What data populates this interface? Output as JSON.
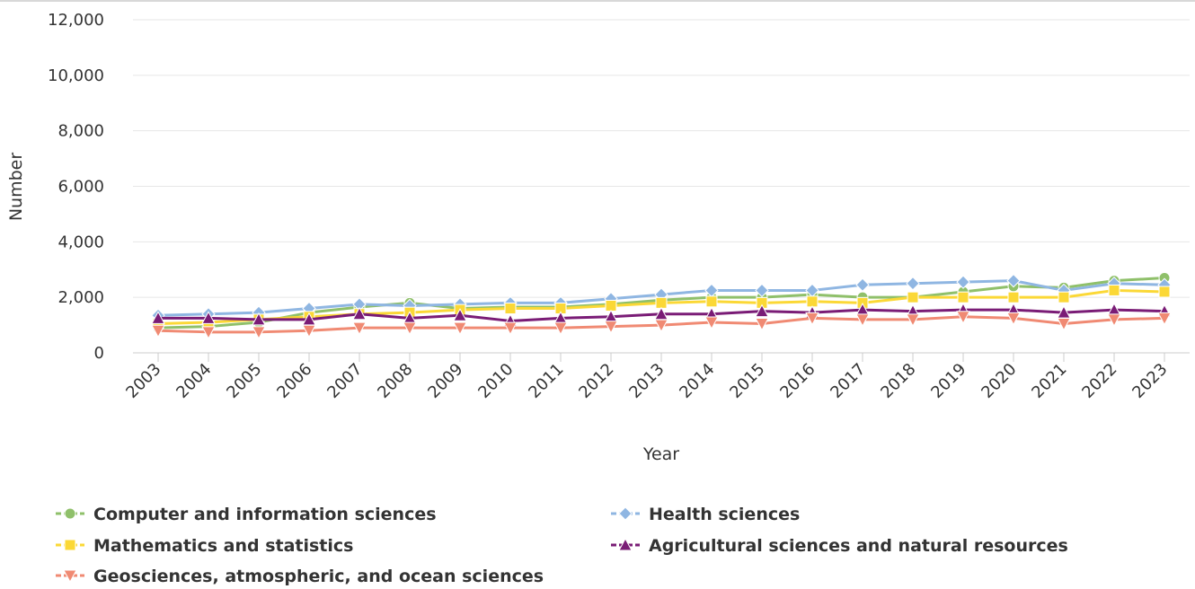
{
  "chart_data": {
    "type": "line",
    "xlabel": "Year",
    "ylabel": "Number",
    "ylim": [
      0,
      12000
    ],
    "yticks": [
      0,
      2000,
      4000,
      6000,
      8000,
      10000,
      12000
    ],
    "ytick_labels": [
      "0",
      "2,000",
      "4,000",
      "6,000",
      "8,000",
      "10,000",
      "12,000"
    ],
    "grid": "horizontal",
    "legend_position": "bottom",
    "categories": [
      "2003",
      "2004",
      "2005",
      "2006",
      "2007",
      "2008",
      "2009",
      "2010",
      "2011",
      "2012",
      "2013",
      "2014",
      "2015",
      "2016",
      "2017",
      "2018",
      "2019",
      "2020",
      "2021",
      "2022",
      "2023"
    ],
    "series": [
      {
        "name": "Computer and information sciences",
        "color": "#8fc06a",
        "marker": "circle",
        "values": [
          900,
          950,
          1100,
          1450,
          1650,
          1800,
          1600,
          1650,
          1650,
          1750,
          1900,
          2000,
          2000,
          2100,
          2000,
          2000,
          2200,
          2400,
          2350,
          2600,
          2700
        ]
      },
      {
        "name": "Health sciences",
        "color": "#8fb6e2",
        "marker": "diamond",
        "values": [
          1350,
          1400,
          1450,
          1600,
          1750,
          1700,
          1750,
          1800,
          1800,
          1950,
          2100,
          2250,
          2250,
          2250,
          2450,
          2500,
          2550,
          2600,
          2250,
          2500,
          2450
        ]
      },
      {
        "name": "Mathematics and statistics",
        "color": "#fbd836",
        "marker": "square",
        "values": [
          1050,
          1100,
          1200,
          1300,
          1400,
          1450,
          1550,
          1600,
          1600,
          1700,
          1800,
          1850,
          1800,
          1850,
          1800,
          2000,
          2000,
          2000,
          2000,
          2250,
          2200
        ]
      },
      {
        "name": "Agricultural sciences and natural resources",
        "color": "#7a1c76",
        "marker": "triangle-up",
        "values": [
          1250,
          1250,
          1200,
          1200,
          1400,
          1250,
          1350,
          1150,
          1250,
          1300,
          1400,
          1400,
          1500,
          1450,
          1550,
          1500,
          1550,
          1550,
          1450,
          1550,
          1500
        ]
      },
      {
        "name": "Geosciences, atmospheric, and ocean sciences",
        "color": "#f08a73",
        "marker": "triangle-down",
        "values": [
          800,
          750,
          750,
          800,
          900,
          900,
          900,
          900,
          900,
          950,
          1000,
          1100,
          1050,
          1250,
          1200,
          1200,
          1300,
          1250,
          1050,
          1200,
          1250
        ]
      }
    ]
  }
}
